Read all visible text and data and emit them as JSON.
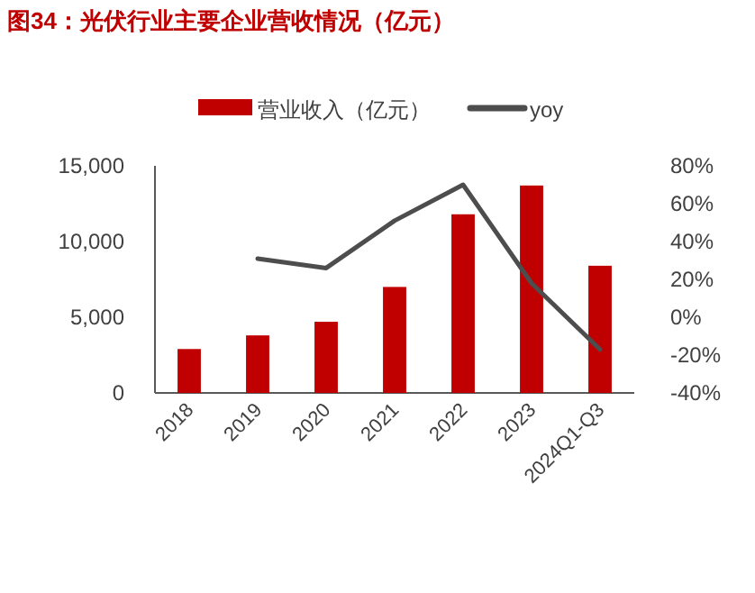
{
  "chart_data": {
    "type": "bar",
    "title": "图34：光伏行业主要企业营收情况（亿元）",
    "categories": [
      "2018",
      "2019",
      "2020",
      "2021",
      "2022",
      "2023",
      "2024Q1-Q3"
    ],
    "series": [
      {
        "name": "营业收入（亿元）",
        "color": "#c00000",
        "values": [
          2900,
          3800,
          4700,
          7000,
          11800,
          13700,
          8400
        ]
      },
      {
        "name": "yoy",
        "type": "line",
        "axis": "y2",
        "color": "#4d4d4d",
        "values": [
          null,
          31,
          26,
          51,
          70,
          18,
          -17
        ]
      }
    ],
    "ylim": [
      0,
      15000
    ],
    "yticks": [
      {
        "value": 0,
        "label": "0"
      },
      {
        "value": 5000,
        "label": "5,000"
      },
      {
        "value": 10000,
        "label": "10,000"
      },
      {
        "value": 15000,
        "label": "15,000"
      }
    ],
    "y2lim": [
      -40,
      80
    ],
    "y2ticks": [
      {
        "value": -40,
        "label": "-40%"
      },
      {
        "value": -20,
        "label": "-20%"
      },
      {
        "value": 0,
        "label": "0%"
      },
      {
        "value": 20,
        "label": "20%"
      },
      {
        "value": 40,
        "label": "40%"
      },
      {
        "value": 60,
        "label": "60%"
      },
      {
        "value": 80,
        "label": "80%"
      }
    ],
    "legend": "top",
    "grid": false,
    "marker": "none"
  }
}
